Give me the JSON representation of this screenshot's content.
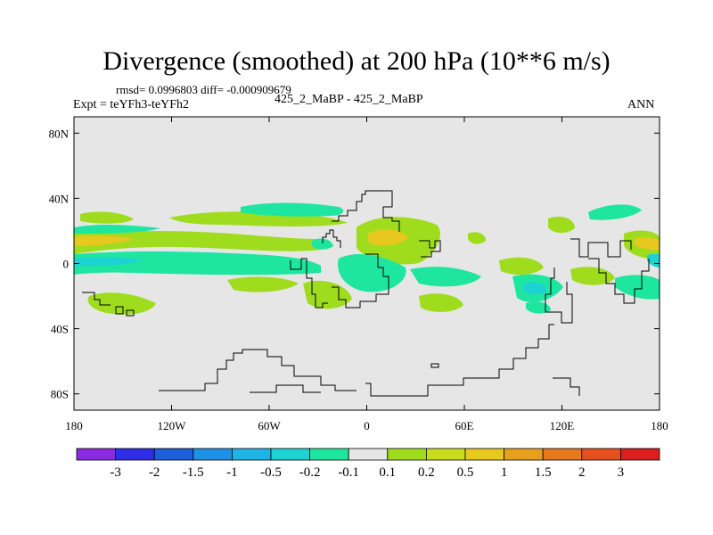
{
  "chart_data": {
    "type": "heatmap",
    "title": "Divergence (smoothed) at 200 hPa (10**6 m/s)",
    "subtitle_left_top": "rmsd= 0.0996803 diff= -0.000909679",
    "subtitle_left": "Expt = teYFh3-teYFh2",
    "subtitle_center": "425_2_MaBP - 425_2_MaBP",
    "subtitle_right": "ANN",
    "x_ticks": [
      "180",
      "120W",
      "60W",
      "0",
      "60E",
      "120E",
      "180"
    ],
    "y_ticks": [
      "80N",
      "40N",
      "0",
      "40S",
      "80S"
    ],
    "x_range": [
      -180,
      180
    ],
    "y_range": [
      -90,
      90
    ],
    "colorbar_levels": [
      "-3",
      "-2",
      "-1.5",
      "-1",
      "-0.5",
      "-0.2",
      "-0.1",
      "0.1",
      "0.2",
      "0.5",
      "1",
      "1.5",
      "2",
      "3"
    ],
    "colorbar_colors": [
      "#8a2be2",
      "#2e2ee6",
      "#1e5fdc",
      "#1e90e6",
      "#1eb4e6",
      "#1ed2d2",
      "#1ee6a0",
      "#e6e6e6",
      "#a0dc1e",
      "#c8dc1e",
      "#e6c81e",
      "#e6a01e",
      "#e6781e",
      "#e6501e",
      "#dc1e1e"
    ],
    "background_color": "#e6e6e6"
  }
}
